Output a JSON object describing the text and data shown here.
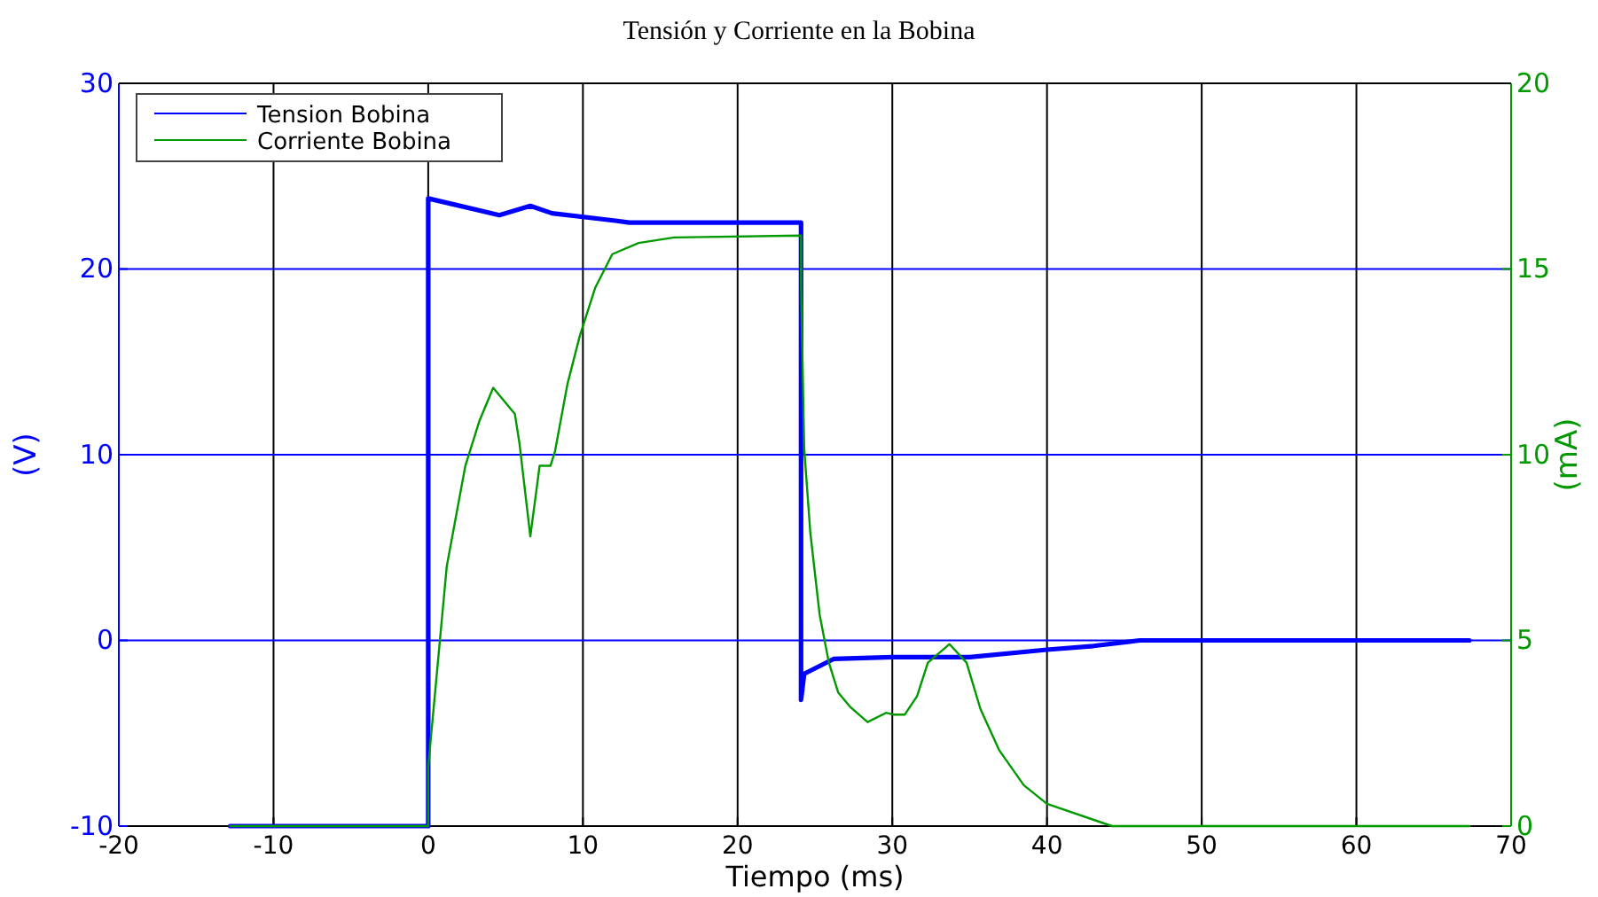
{
  "chart_data": {
    "type": "line",
    "title": "Tensión y Corriente en la Bobina",
    "xlabel": "Tiempo (ms)",
    "ylabel": "(V)",
    "y2label": "(mA)",
    "xlim": [
      -20,
      70
    ],
    "xticks": [
      -20,
      -10,
      0,
      10,
      20,
      30,
      40,
      50,
      60,
      70
    ],
    "ylim": [
      -10,
      30
    ],
    "yticks": [
      -10,
      0,
      10,
      20,
      30
    ],
    "y2lim": [
      0,
      20
    ],
    "y2ticks": [
      0,
      5,
      10,
      15,
      20
    ],
    "grid": true,
    "legend": "top left",
    "series": [
      {
        "name": "Tension Bobina",
        "color": "#0000ff",
        "axis": "y",
        "x": [
          -12.8,
          0,
          0,
          4.6,
          6.6,
          8,
          12.1,
          13,
          24.1,
          24.1,
          24.3,
          26.2,
          30,
          35,
          40,
          43,
          46,
          55,
          67.3
        ],
        "values": [
          -10,
          -10,
          23.8,
          22.9,
          23.4,
          23.0,
          22.6,
          22.5,
          22.5,
          -3.2,
          -1.8,
          -1.0,
          -0.9,
          -0.9,
          -0.5,
          -0.3,
          0,
          0,
          0
        ]
      },
      {
        "name": "Corriente Bobina",
        "color": "#009900",
        "axis": "y2",
        "x": [
          -12.8,
          0,
          0,
          1.2,
          2.4,
          3.3,
          4.2,
          5.6,
          5.9,
          6.6,
          7.2,
          7.9,
          8.2,
          9.0,
          9.8,
          10.8,
          11.9,
          13.6,
          15.9,
          24.1,
          24.1,
          24.3,
          24.7,
          25.3,
          25.9,
          26.5,
          27.3,
          28.4,
          29.6,
          30.1,
          30.8,
          31.6,
          32.3,
          33.7,
          34.8,
          35.7,
          36.9,
          38.5,
          40.0,
          44.2,
          67.3
        ],
        "values": [
          0,
          0,
          1.6,
          7.0,
          9.7,
          10.9,
          11.8,
          11.1,
          10.3,
          7.8,
          9.7,
          9.7,
          10.1,
          11.9,
          13.2,
          14.5,
          15.4,
          15.7,
          15.85,
          15.9,
          14.6,
          10.2,
          7.9,
          5.7,
          4.4,
          3.6,
          3.2,
          2.8,
          3.05,
          3.0,
          3.0,
          3.5,
          4.4,
          4.9,
          4.4,
          3.15,
          2.05,
          1.1,
          0.6,
          0,
          0
        ]
      }
    ]
  }
}
